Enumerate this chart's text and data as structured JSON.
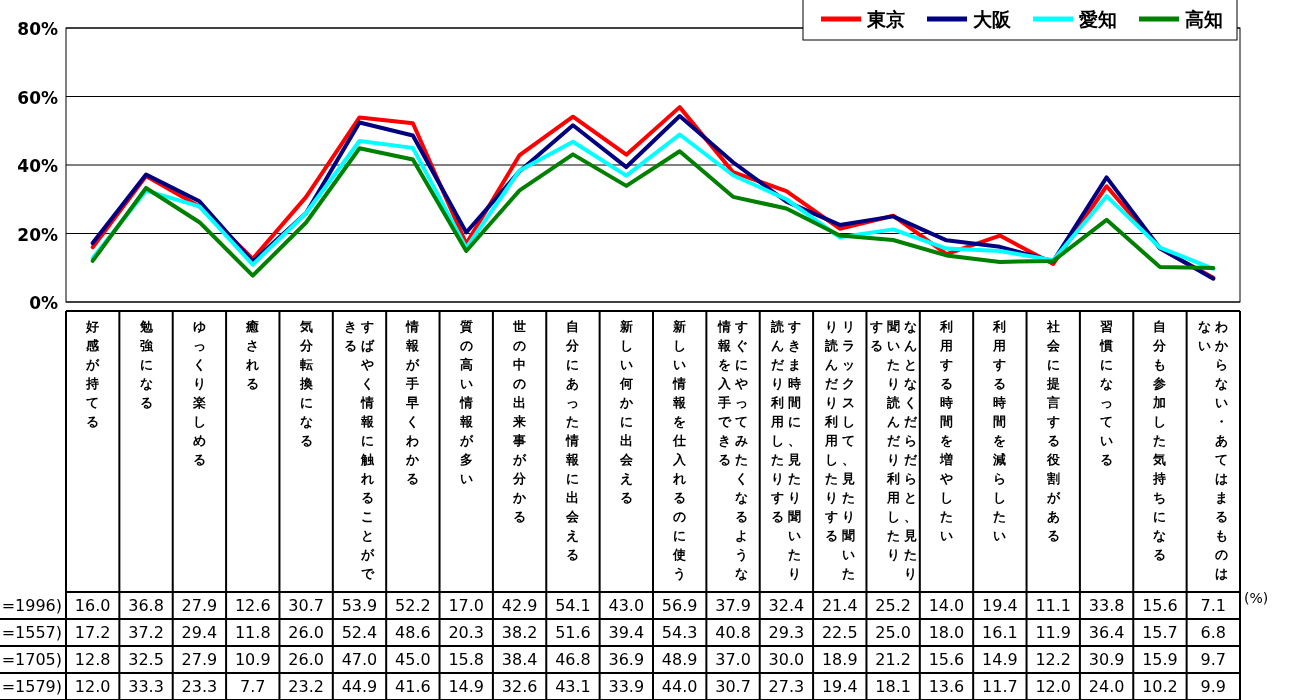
{
  "chart_data": {
    "type": "line",
    "categories": [
      "好感が持てる",
      "勉強になる",
      "ゆっくり楽しめる",
      "癒される",
      "気分転換になる",
      "すばやく情報に触れることができる",
      "情報が手早くわかる",
      "質の高い情報が多い",
      "世の中の出来事が分かる",
      "自分にあった情報に出会える",
      "新しい何かに出会える",
      "新しい情報を仕入れるのに使う",
      "すぐにやってみたくなるような情報を入手できる",
      "すきま時間に、見たり聞いたり読んだり利用したりする",
      "リラックスして、見たり聞いたり読んだり利用したりする",
      "なんとなくだらだらと、見たり聞いたり読んだり利用したりする",
      "利用する時間を増やしたい",
      "利用する時間を減らしたい",
      "社会に提言する役割がある",
      "習慣になっている",
      "自分も参加した気持ちになる",
      "わからない・あてはまるものはない"
    ],
    "series": [
      {
        "name": "東京",
        "color": "#ff0000",
        "values": [
          16.0,
          36.8,
          27.9,
          12.6,
          30.7,
          53.9,
          52.2,
          17.0,
          42.9,
          54.1,
          43.0,
          56.9,
          37.9,
          32.4,
          21.4,
          25.2,
          14.0,
          19.4,
          11.1,
          33.8,
          15.6,
          7.1
        ],
        "value_labels": [
          "16.0",
          "36.8",
          "27.9",
          "12.6",
          "30.7",
          "53.9",
          "52.2",
          "17.0",
          "42.9",
          "54.1",
          "43.0",
          "56.9",
          "37.9",
          "32.4",
          "21.4",
          "25.2",
          "14.0",
          "19.4",
          "11.1",
          "33.8",
          "15.6",
          "7.1"
        ]
      },
      {
        "name": "大阪",
        "color": "#000080",
        "values": [
          17.2,
          37.2,
          29.4,
          11.8,
          26.0,
          52.4,
          48.6,
          20.3,
          38.2,
          51.6,
          39.4,
          54.3,
          40.8,
          29.3,
          22.5,
          25.0,
          18.0,
          16.1,
          11.9,
          36.4,
          15.7,
          6.8
        ],
        "value_labels": [
          "17.2",
          "37.2",
          "29.4",
          "11.8",
          "26.0",
          "52.4",
          "48.6",
          "20.3",
          "38.2",
          "51.6",
          "39.4",
          "54.3",
          "40.8",
          "29.3",
          "22.5",
          "25.0",
          "18.0",
          "16.1",
          "11.9",
          "36.4",
          "15.7",
          "6.8"
        ]
      },
      {
        "name": "愛知",
        "color": "#00ffff",
        "values": [
          12.8,
          32.5,
          27.9,
          10.9,
          26.0,
          47.0,
          45.0,
          15.8,
          38.4,
          46.8,
          36.9,
          48.9,
          37.0,
          30.0,
          18.9,
          21.2,
          15.6,
          14.9,
          12.2,
          30.9,
          15.9,
          9.7
        ],
        "value_labels": [
          "12.8",
          "32.5",
          "27.9",
          "10.9",
          "26.0",
          "47.0",
          "45.0",
          "15.8",
          "38.4",
          "46.8",
          "36.9",
          "48.9",
          "37.0",
          "30.0",
          "18.9",
          "21.2",
          "15.6",
          "14.9",
          "12.2",
          "30.9",
          "15.9",
          "9.7"
        ]
      },
      {
        "name": "高知",
        "color": "#008000",
        "values": [
          12.0,
          33.3,
          23.3,
          7.7,
          23.2,
          44.9,
          41.6,
          14.9,
          32.6,
          43.1,
          33.9,
          44.0,
          30.7,
          27.3,
          19.4,
          18.1,
          13.6,
          11.7,
          12.0,
          24.0,
          10.2,
          9.9
        ],
        "value_labels": [
          "12.0",
          "33.3",
          "23.3",
          "7.7",
          "23.2",
          "44.9",
          "41.6",
          "14.9",
          "32.6",
          "43.1",
          "33.9",
          "44.0",
          "30.7",
          "27.3",
          "19.4",
          "18.1",
          "13.6",
          "11.7",
          "12.0",
          "24.0",
          "10.2",
          "9.9"
        ]
      }
    ],
    "ylim": [
      0,
      80
    ],
    "yticks": [
      {
        "value": 0,
        "label": "0%"
      },
      {
        "value": 20,
        "label": "20%"
      },
      {
        "value": 40,
        "label": "40%"
      },
      {
        "value": 60,
        "label": "60%"
      },
      {
        "value": 80,
        "label": "80%"
      }
    ],
    "grid": "y",
    "legend": "top right",
    "marker": "none",
    "line_style": "solid",
    "annotations": [
      "=1996)",
      "=1557)",
      "=1705)",
      "=1579)",
      "(%)"
    ]
  }
}
